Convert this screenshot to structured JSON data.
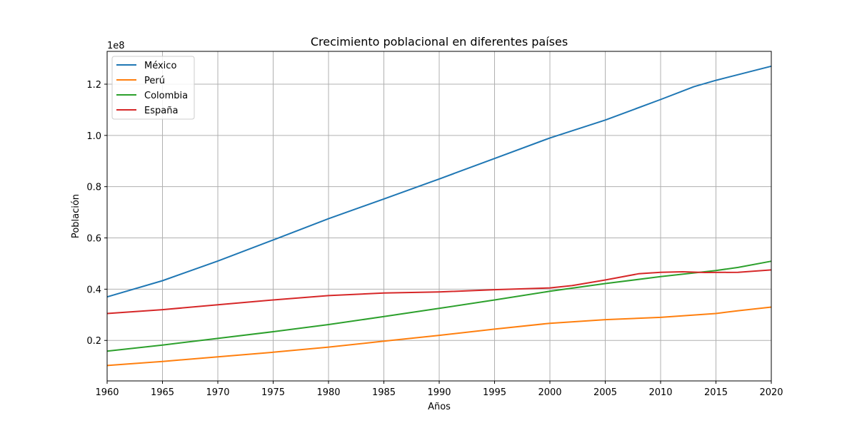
{
  "chart_data": {
    "type": "line",
    "title": "Crecimiento poblacional en diferentes países",
    "xlabel": "Años",
    "ylabel": "Población",
    "offset_label": "1e8",
    "xlim": [
      1960,
      2020
    ],
    "ylim": [
      4200000,
      132800000
    ],
    "xticks": [
      1960,
      1965,
      1970,
      1975,
      1980,
      1985,
      1990,
      1995,
      2000,
      2005,
      2010,
      2015,
      2020
    ],
    "yticks": [
      20000000,
      40000000,
      60000000,
      80000000,
      100000000,
      120000000
    ],
    "ytick_labels": [
      "0.2",
      "0.4",
      "0.6",
      "0.8",
      "1.0",
      "1.2"
    ],
    "grid": true,
    "legend_position": "top-left",
    "series": [
      {
        "name": "México",
        "color": "#1f77b4",
        "points": [
          [
            1960,
            37000000
          ],
          [
            1965,
            43300000
          ],
          [
            1970,
            51000000
          ],
          [
            1975,
            59200000
          ],
          [
            1980,
            67500000
          ],
          [
            1985,
            75200000
          ],
          [
            1990,
            83000000
          ],
          [
            1995,
            91000000
          ],
          [
            2000,
            99000000
          ],
          [
            2005,
            106000000
          ],
          [
            2010,
            114000000
          ],
          [
            2013,
            119000000
          ],
          [
            2015,
            121500000
          ],
          [
            2020,
            127000000
          ]
        ]
      },
      {
        "name": "Perú",
        "color": "#ff7f0e",
        "points": [
          [
            1960,
            10200000
          ],
          [
            1965,
            11800000
          ],
          [
            1970,
            13600000
          ],
          [
            1975,
            15400000
          ],
          [
            1980,
            17400000
          ],
          [
            1985,
            19700000
          ],
          [
            1990,
            22000000
          ],
          [
            1995,
            24400000
          ],
          [
            2000,
            26700000
          ],
          [
            2005,
            28100000
          ],
          [
            2010,
            29000000
          ],
          [
            2015,
            30500000
          ],
          [
            2017,
            31600000
          ],
          [
            2020,
            33000000
          ]
        ]
      },
      {
        "name": "Colombia",
        "color": "#2ca02c",
        "points": [
          [
            1960,
            15800000
          ],
          [
            1965,
            18200000
          ],
          [
            1970,
            20800000
          ],
          [
            1975,
            23400000
          ],
          [
            1980,
            26200000
          ],
          [
            1985,
            29300000
          ],
          [
            1990,
            32500000
          ],
          [
            1995,
            35800000
          ],
          [
            2000,
            39200000
          ],
          [
            2005,
            42200000
          ],
          [
            2010,
            44900000
          ],
          [
            2015,
            47300000
          ],
          [
            2017,
            48500000
          ],
          [
            2020,
            50900000
          ]
        ]
      },
      {
        "name": "España",
        "color": "#d62728",
        "points": [
          [
            1960,
            30500000
          ],
          [
            1965,
            32000000
          ],
          [
            1970,
            33900000
          ],
          [
            1975,
            35800000
          ],
          [
            1980,
            37500000
          ],
          [
            1985,
            38500000
          ],
          [
            1990,
            38900000
          ],
          [
            1995,
            39800000
          ],
          [
            2000,
            40500000
          ],
          [
            2002,
            41400000
          ],
          [
            2005,
            43600000
          ],
          [
            2008,
            46000000
          ],
          [
            2010,
            46600000
          ],
          [
            2012,
            46800000
          ],
          [
            2014,
            46500000
          ],
          [
            2017,
            46600000
          ],
          [
            2020,
            47500000
          ]
        ]
      }
    ]
  }
}
